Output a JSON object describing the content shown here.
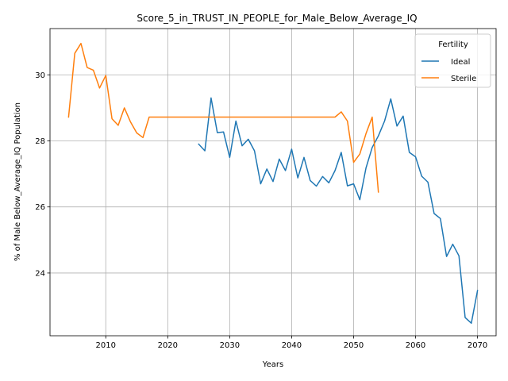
{
  "chart_data": {
    "type": "line",
    "title": "Score_5_in_TRUST_IN_PEOPLE_for_Male_Below_Average_IQ",
    "xlabel": "Years",
    "ylabel": "% of Male Below_Average_IQ Population",
    "xlim": [
      2001,
      2073
    ],
    "ylim": [
      22.1,
      31.4
    ],
    "xticks": [
      2010,
      2020,
      2030,
      2040,
      2050,
      2060,
      2070
    ],
    "yticks": [
      24,
      26,
      28,
      30
    ],
    "grid": true,
    "legend": {
      "title": "Fertility",
      "placement": "top-right"
    },
    "series": [
      {
        "name": "Ideal",
        "color": "#1f77b4",
        "x": [
          2025,
          2026,
          2027,
          2028,
          2029,
          2030,
          2031,
          2032,
          2033,
          2034,
          2035,
          2036,
          2037,
          2038,
          2039,
          2040,
          2041,
          2042,
          2043,
          2044,
          2045,
          2046,
          2047,
          2048,
          2049,
          2050,
          2051,
          2052,
          2053,
          2054,
          2055,
          2056,
          2057,
          2058,
          2059,
          2060,
          2061,
          2062,
          2063,
          2064,
          2065,
          2066,
          2067,
          2068,
          2069,
          2070
        ],
        "values": [
          27.9,
          27.7,
          29.3,
          28.25,
          28.27,
          27.5,
          28.6,
          27.85,
          28.05,
          27.7,
          26.7,
          27.15,
          26.77,
          27.45,
          27.1,
          27.75,
          26.88,
          27.5,
          26.8,
          26.63,
          26.92,
          26.73,
          27.1,
          27.65,
          26.64,
          26.7,
          26.22,
          27.18,
          27.8,
          28.15,
          28.6,
          29.27,
          28.45,
          28.75,
          27.65,
          27.52,
          26.93,
          26.75,
          25.8,
          25.65,
          24.5,
          24.87,
          24.52,
          22.65,
          22.48,
          23.47
        ]
      },
      {
        "name": "Sterile",
        "color": "#ff7f0e",
        "x": [
          2004,
          2005,
          2006,
          2007,
          2008,
          2009,
          2010,
          2011,
          2012,
          2013,
          2014,
          2015,
          2016,
          2017,
          2018,
          2019,
          2020,
          2021,
          2022,
          2023,
          2024,
          2025,
          2026,
          2027,
          2028,
          2029,
          2030,
          2031,
          2032,
          2033,
          2034,
          2035,
          2036,
          2037,
          2038,
          2039,
          2040,
          2041,
          2042,
          2043,
          2044,
          2045,
          2046,
          2047,
          2048,
          2049,
          2050,
          2051,
          2052,
          2053,
          2054
        ],
        "values": [
          28.72,
          30.65,
          30.95,
          30.22,
          30.14,
          29.6,
          29.98,
          28.67,
          28.47,
          29.0,
          28.57,
          28.24,
          28.1,
          28.72,
          28.72,
          28.72,
          28.72,
          28.72,
          28.72,
          28.72,
          28.72,
          28.72,
          28.72,
          28.72,
          28.72,
          28.72,
          28.72,
          28.72,
          28.72,
          28.72,
          28.72,
          28.72,
          28.72,
          28.72,
          28.72,
          28.72,
          28.72,
          28.72,
          28.72,
          28.72,
          28.72,
          28.72,
          28.72,
          28.72,
          28.88,
          28.6,
          27.35,
          27.6,
          28.22,
          28.72,
          26.45
        ]
      }
    ]
  }
}
